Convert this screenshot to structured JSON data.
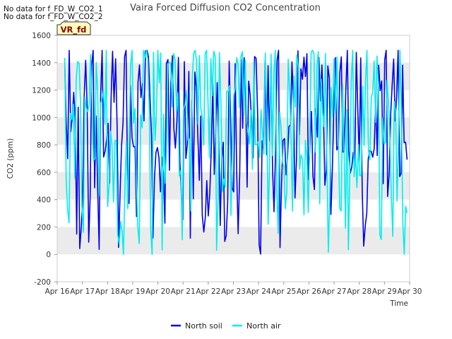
{
  "notes": [
    "No data for f_FD_W_CO2_1",
    "No data for f_FD_W_CO2_2"
  ],
  "chart_data": {
    "type": "line",
    "title": "Vaira Forced Diffusion CO2 Concentration",
    "xlabel": "Time",
    "ylabel": "CO2 (ppm)",
    "ylim": [
      -200,
      1600
    ],
    "yticks": [
      -200,
      0,
      200,
      400,
      600,
      800,
      1000,
      1200,
      1400,
      1600
    ],
    "xlim": [
      16,
      30
    ],
    "xticks": [
      16,
      17,
      18,
      19,
      20,
      21,
      22,
      23,
      24,
      25,
      26,
      27,
      28,
      29,
      30
    ],
    "xticklabels": [
      "Apr 16",
      "Apr 17",
      "Apr 18",
      "Apr 19",
      "Apr 20",
      "Apr 21",
      "Apr 22",
      "Apr 23",
      "Apr 24",
      "Apr 25",
      "Apr 26",
      "Apr 27",
      "Apr 28",
      "Apr 29",
      "Apr 30"
    ],
    "grid": "horizontal-bands",
    "legend_position": "bottom-center",
    "badge": "VR_fd",
    "series": [
      {
        "name": "North soil",
        "color": "#0000ee",
        "n": 230,
        "seed": 7,
        "min": -20,
        "max": 1490,
        "start": 16.3,
        "end": 29.9
      },
      {
        "name": "North air",
        "color": "#00eeee",
        "n": 240,
        "seed": 13,
        "min": 0,
        "max": 1490,
        "start": 16.3,
        "end": 29.9
      }
    ]
  },
  "colors": {
    "band": "#ebebeb",
    "plot_bg": "#ffffff",
    "badge_bg": "#ffffc0",
    "badge_text": "#8b0000"
  }
}
